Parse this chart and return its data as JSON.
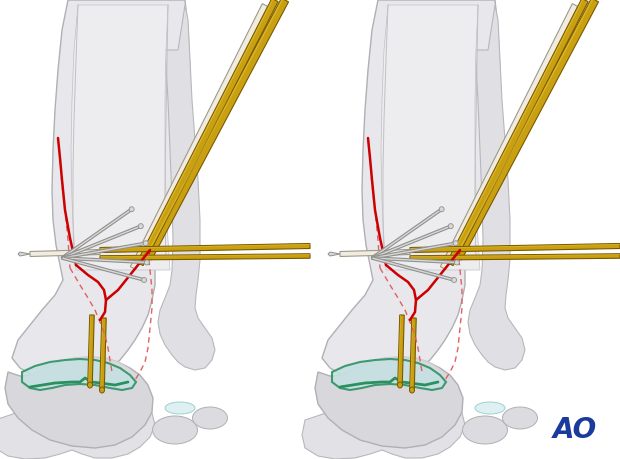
{
  "background_color": "#ffffff",
  "figure_width": 6.2,
  "figure_height": 4.59,
  "dpi": 100,
  "ao_text": "AO",
  "ao_color": "#1a3a9c",
  "ao_fontsize": 20,
  "ao_fontweight": "bold",
  "bone_light": "#e8e8ec",
  "bone_mid": "#d8d8dc",
  "bone_dark": "#c8c8cc",
  "bone_edge": "#b0b0b4",
  "bone_inner": "#d0d0d4",
  "cartilage_fill": "#c5e0e2",
  "cartilage_edge": "#2a9060",
  "gold_fill": "#c8a010",
  "gold_edge": "#7a5800",
  "gold_hilite": "#e8c840",
  "cream_fill": "#f0ece0",
  "cream_edge": "#a0998a",
  "red_solid": "#cc0000",
  "red_dotted": "#e06060",
  "screw_fill": "#d8d8d4",
  "screw_edge": "#909090"
}
